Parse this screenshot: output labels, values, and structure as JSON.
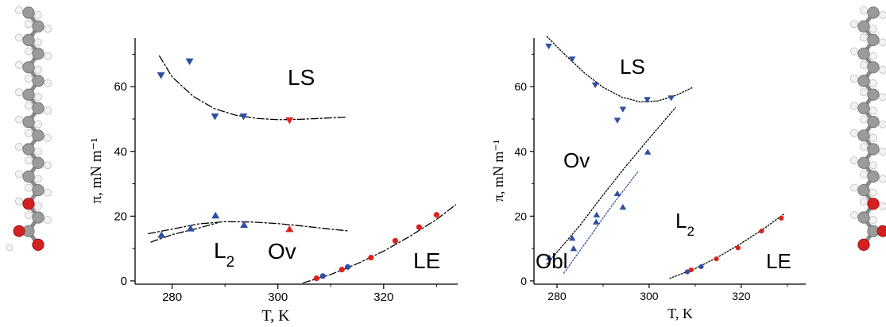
{
  "colors": {
    "blue_marker": "#2f4fa3",
    "red_marker": "#e0201b",
    "axis": "#000000",
    "fit_line": "#000000",
    "fit_line_blue": "#2f4fa3",
    "carbon": "#9b9b9b",
    "hydrogen": "#f2f2f2",
    "oxygen": "#d42020"
  },
  "molecule_icons": [
    "molecule-model-left",
    "molecule-model-right"
  ],
  "chart_data": [
    {
      "type": "scatter",
      "title": "",
      "xlabel": "T, K",
      "ylabel": "π, mN m⁻¹",
      "xlim": [
        273,
        334
      ],
      "ylim": [
        -1,
        75
      ],
      "xticks": [
        "280",
        "300",
        "320"
      ],
      "yticks": [
        "0",
        "20",
        "40",
        "60"
      ],
      "regions": [
        "LS",
        "Ov",
        "L2",
        "LE"
      ],
      "series": [
        {
          "marker": "down-triangle",
          "color": "blue",
          "points": [
            [
              277.9,
              63.5
            ],
            [
              283.3,
              67.8
            ],
            [
              288.1,
              50.8
            ],
            [
              293.5,
              50.8
            ]
          ]
        },
        {
          "marker": "down-triangle",
          "color": "red",
          "points": [
            [
              302.2,
              49.6
            ]
          ]
        },
        {
          "marker": "up-triangle",
          "color": "blue",
          "points": [
            [
              278.0,
              14.2
            ],
            [
              283.5,
              16.2
            ],
            [
              288.2,
              20.2
            ],
            [
              293.6,
              17.3
            ]
          ]
        },
        {
          "marker": "up-triangle",
          "color": "red",
          "points": [
            [
              302.2,
              16.0
            ]
          ]
        },
        {
          "marker": "circle",
          "color": "blue",
          "points": [
            [
              308.5,
              1.5
            ],
            [
              313.2,
              4.3
            ]
          ]
        },
        {
          "marker": "circle",
          "color": "red",
          "points": [
            [
              307.3,
              0.8
            ],
            [
              312.1,
              3.5
            ],
            [
              317.6,
              7.2
            ],
            [
              322.2,
              12.4
            ],
            [
              326.7,
              16.6
            ],
            [
              330.0,
              20.4
            ]
          ]
        }
      ],
      "curves": [
        {
          "style": "dashdot",
          "color": "black",
          "points": [
            [
              277.6,
              69.5
            ],
            [
              280,
              63
            ],
            [
              284,
              57
            ],
            [
              288,
              53.2
            ],
            [
              292,
              51.2
            ],
            [
              296,
              50.2
            ],
            [
              300,
              49.8
            ],
            [
              304,
              49.9
            ],
            [
              308,
              50.2
            ],
            [
              313,
              50.6
            ]
          ]
        },
        {
          "style": "dashdot",
          "color": "black",
          "points": [
            [
              275.5,
              14.6
            ],
            [
              280,
              16.0
            ],
            [
              285,
              17.6
            ],
            [
              290,
              18.3
            ],
            [
              295,
              18.2
            ],
            [
              300,
              17.7
            ],
            [
              305,
              16.9
            ],
            [
              310,
              16.0
            ],
            [
              313.5,
              15.4
            ]
          ]
        },
        {
          "style": "dashdot",
          "color": "black",
          "points": [
            [
              276,
              12.0
            ],
            [
              280,
              14.3
            ],
            [
              285,
              16.3
            ],
            [
              288.5,
              17.9
            ]
          ]
        },
        {
          "style": "dashdot",
          "color": "black",
          "points": [
            [
              304.8,
              -0.6
            ],
            [
              310,
              2.0
            ],
            [
              315,
              5.3
            ],
            [
              320,
              9.2
            ],
            [
              325,
              13.8
            ],
            [
              330,
              19.0
            ],
            [
              333.6,
              23.5
            ]
          ]
        }
      ]
    },
    {
      "type": "scatter",
      "title": "",
      "xlabel": "T, K",
      "ylabel": "π, mN m⁻¹",
      "xlim": [
        275,
        334
      ],
      "ylim": [
        -1,
        75
      ],
      "xticks": [
        "280",
        "300",
        "320"
      ],
      "yticks": [
        "0",
        "20",
        "40",
        "60"
      ],
      "regions": [
        "LS",
        "Ov",
        "L2",
        "Obl",
        "LE"
      ],
      "series": [
        {
          "marker": "down-triangle",
          "color": "blue",
          "points": [
            [
              278.2,
              72.5
            ],
            [
              283.3,
              68.5
            ],
            [
              288.3,
              60.5
            ],
            [
              293.1,
              49.6
            ],
            [
              294.3,
              53.0
            ],
            [
              299.6,
              56.0
            ],
            [
              304.8,
              56.5
            ]
          ]
        },
        {
          "marker": "up-triangle",
          "color": "blue",
          "points": [
            [
              278.3,
              7.2
            ],
            [
              283.3,
              13.2
            ],
            [
              283.6,
              10.0
            ],
            [
              288.5,
              18.2
            ],
            [
              288.6,
              20.4
            ],
            [
              293.1,
              27.0
            ],
            [
              294.3,
              22.8
            ],
            [
              299.7,
              39.8
            ]
          ]
        },
        {
          "marker": "circle",
          "color": "blue",
          "points": [
            [
              308.3,
              2.8
            ],
            [
              311.3,
              4.4
            ]
          ]
        },
        {
          "marker": "circle",
          "color": "red",
          "points": [
            [
              309.1,
              3.4
            ],
            [
              314.6,
              6.8
            ],
            [
              319.3,
              10.2
            ],
            [
              324.4,
              15.4
            ],
            [
              328.7,
              19.4
            ]
          ]
        }
      ],
      "curves": [
        {
          "style": "dotted",
          "color": "black",
          "points": [
            [
              277.8,
              75.5
            ],
            [
              282,
              69.5
            ],
            [
              286,
              64.2
            ],
            [
              290,
              59.8
            ],
            [
              294,
              56.8
            ],
            [
              298,
              55.3
            ],
            [
              302,
              55.6
            ],
            [
              306,
              57.4
            ],
            [
              309.5,
              59.8
            ]
          ]
        },
        {
          "style": "dotted",
          "color": "black",
          "points": [
            [
              277.8,
              5.2
            ],
            [
              285,
              17.2
            ],
            [
              290,
              26.5
            ],
            [
              295,
              35.5
            ],
            [
              300,
              44.0
            ],
            [
              305.7,
              53.5
            ]
          ]
        },
        {
          "style": "dotted",
          "color": "blue",
          "points": [
            [
              281.5,
              2.4
            ],
            [
              287,
              13.4
            ],
            [
              292,
              23.4
            ],
            [
              297.5,
              33.6
            ]
          ]
        },
        {
          "style": "dotted",
          "color": "black",
          "points": [
            [
              304.5,
              0.8
            ],
            [
              310,
              3.8
            ],
            [
              315,
              7.4
            ],
            [
              320,
              11.6
            ],
            [
              325,
              16.2
            ],
            [
              329.2,
              20.6
            ]
          ]
        }
      ]
    }
  ]
}
